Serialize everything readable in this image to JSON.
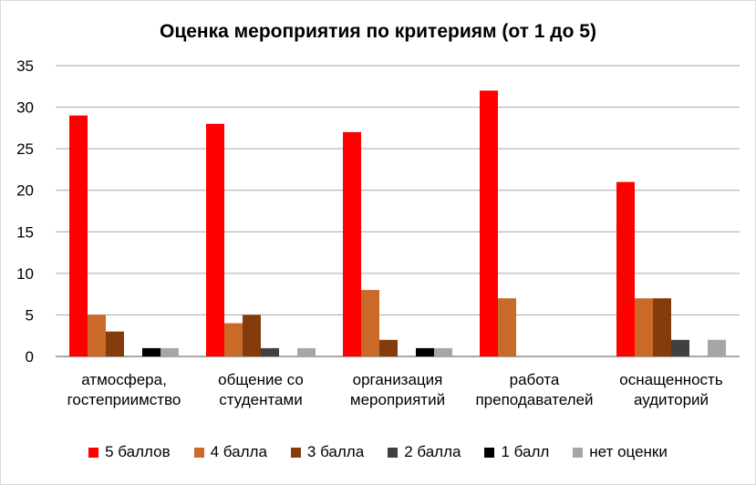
{
  "chart_data": {
    "type": "bar",
    "title": "Оценка мероприятия по критериям (от 1 до 5)",
    "categories": [
      [
        "атмосфера,",
        "гостеприимство"
      ],
      [
        "общение со",
        "студентами"
      ],
      [
        "организация",
        "мероприятий"
      ],
      [
        "работа",
        "преподавателей"
      ],
      [
        "оснащенность",
        "аудиторий"
      ]
    ],
    "series": [
      {
        "name": "5 баллов",
        "color": "#FF0000",
        "values": [
          29,
          28,
          27,
          32,
          21
        ]
      },
      {
        "name": "4 балла",
        "color": "#C96A28",
        "values": [
          5,
          4,
          8,
          7,
          7
        ]
      },
      {
        "name": "3 балла",
        "color": "#843C0C",
        "values": [
          3,
          5,
          2,
          0,
          7
        ]
      },
      {
        "name": "2 балла",
        "color": "#404040",
        "values": [
          0,
          1,
          0,
          0,
          2
        ]
      },
      {
        "name": "1 балл",
        "color": "#000000",
        "values": [
          1,
          0,
          1,
          0,
          0
        ]
      },
      {
        "name": "нет оценки",
        "color": "#A6A6A6",
        "values": [
          1,
          1,
          1,
          0,
          2
        ]
      }
    ],
    "ylim": [
      0,
      35
    ],
    "yticks": [
      "0",
      "5",
      "10",
      "15",
      "20",
      "25",
      "30",
      "35"
    ],
    "grid": true,
    "legend": "bottom"
  }
}
